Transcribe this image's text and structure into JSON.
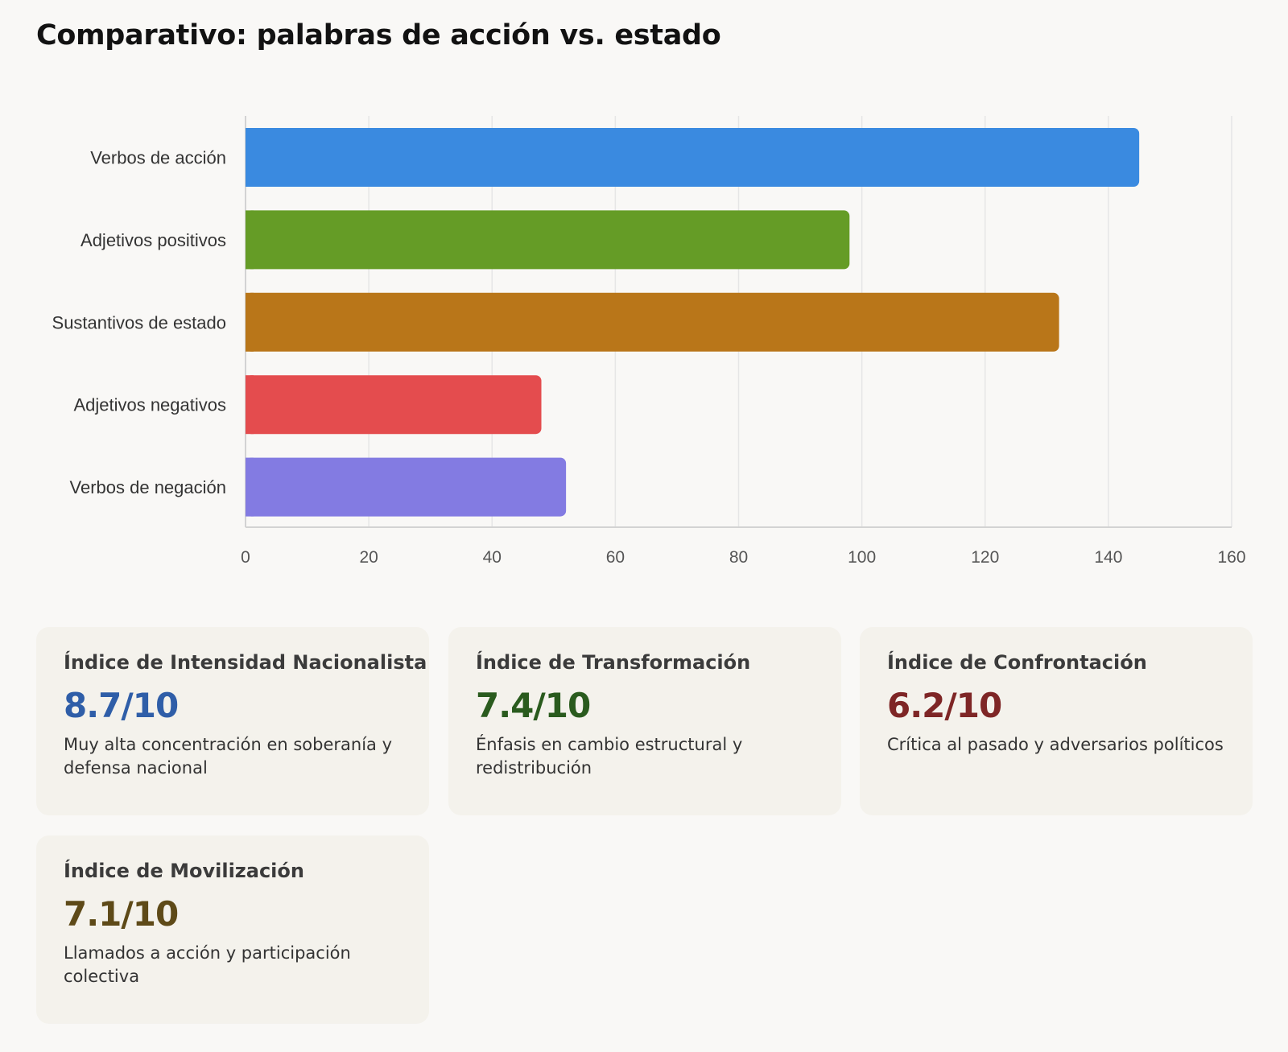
{
  "page": {
    "title": "Comparativo: palabras de acción vs. estado"
  },
  "chart_data": {
    "type": "bar",
    "orientation": "horizontal",
    "title": "",
    "xlabel": "",
    "ylabel": "",
    "categories": [
      "Verbos de acción",
      "Adjetivos positivos",
      "Sustantivos de estado",
      "Adjetivos negativos",
      "Verbos de negación"
    ],
    "values": [
      145,
      98,
      132,
      48,
      52
    ],
    "colors": [
      "#3a8ae0",
      "#659c26",
      "#b97619",
      "#e44c4e",
      "#837be2"
    ],
    "xlim": [
      0,
      160
    ],
    "xticks": [
      "0",
      "20",
      "40",
      "60",
      "80",
      "100",
      "120",
      "140",
      "160"
    ],
    "grid": true,
    "legend": "none"
  },
  "cards": [
    {
      "title": "Índice de Intensidad Nacionalista",
      "value": "8.7/10",
      "desc": "Muy alta concentración en soberanía y defensa nacional",
      "color": "#2f5ea8"
    },
    {
      "title": "Índice de Transformación",
      "value": "7.4/10",
      "desc": "Énfasis en cambio estructural y redistribución",
      "color": "#2a5b1e"
    },
    {
      "title": "Índice de Confrontación",
      "value": "6.2/10",
      "desc": "Crítica al pasado y adversarios políticos",
      "color": "#7e2626"
    },
    {
      "title": "Índice de Movilización",
      "value": "7.1/10",
      "desc": "Llamados a acción y participación colectiva",
      "color": "#5e4a18"
    }
  ]
}
